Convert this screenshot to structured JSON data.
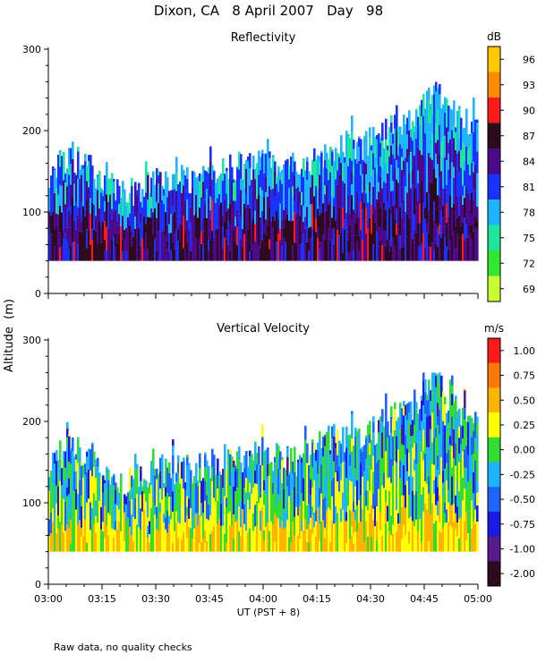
{
  "title": "Dixon, CA   8 April 2007   Day   98",
  "y_axis_label": "Altitude  (m)",
  "footnote": "Raw data, no quality checks",
  "chart_data": [
    {
      "type": "heatmap",
      "title": "Reflectivity",
      "xlabel": "UT   (PST + 8)",
      "x_tick_labels": [
        "03:00",
        "03:15",
        "03:30",
        "03:45",
        "04:00",
        "04:15",
        "04:30",
        "04:45",
        "05:00"
      ],
      "xlim": [
        "03:00",
        "05:00"
      ],
      "ylim": [
        0,
        300
      ],
      "y_ticks": [
        "0",
        "100",
        "200",
        "300"
      ],
      "colorbar": {
        "unit": "dB",
        "labels": [
          "96",
          "93",
          "90",
          "87",
          "84",
          "81",
          "78",
          "75",
          "72",
          "69"
        ],
        "colors": [
          "#ffc800",
          "#ff8c00",
          "#ff1a1a",
          "#2d0a1e",
          "#4b0a8c",
          "#1a32ff",
          "#1eb4ff",
          "#1ee6a0",
          "#32e632",
          "#c8ff32"
        ]
      },
      "echo_base_m": 40,
      "echo_top_m": [
        {
          "x": "03:00",
          "y": 140
        },
        {
          "x": "03:05",
          "y": 170
        },
        {
          "x": "03:10",
          "y": 160
        },
        {
          "x": "03:15",
          "y": 140
        },
        {
          "x": "03:20",
          "y": 120
        },
        {
          "x": "03:30",
          "y": 140
        },
        {
          "x": "03:40",
          "y": 140
        },
        {
          "x": "03:45",
          "y": 150
        },
        {
          "x": "04:00",
          "y": 160
        },
        {
          "x": "04:10",
          "y": 150
        },
        {
          "x": "04:15",
          "y": 170
        },
        {
          "x": "04:20",
          "y": 180
        },
        {
          "x": "04:28",
          "y": 180
        },
        {
          "x": "04:35",
          "y": 200
        },
        {
          "x": "04:40",
          "y": 210
        },
        {
          "x": "04:45",
          "y": 235
        },
        {
          "x": "04:48",
          "y": 260
        },
        {
          "x": "04:52",
          "y": 220
        },
        {
          "x": "05:00",
          "y": 200
        }
      ]
    },
    {
      "type": "heatmap",
      "title": "Vertical Velocity",
      "xlabel": "UT   (PST + 8)",
      "x_tick_labels": [
        "03:00",
        "03:15",
        "03:30",
        "03:45",
        "04:00",
        "04:15",
        "04:30",
        "04:45",
        "05:00"
      ],
      "xlim": [
        "03:00",
        "05:00"
      ],
      "ylim": [
        0,
        300
      ],
      "y_ticks": [
        "0",
        "100",
        "200",
        "300"
      ],
      "colorbar": {
        "unit": "m/s",
        "labels": [
          "1.00",
          "0.75",
          "0.50",
          "0.25",
          "0.00",
          "-0.25",
          "-0.50",
          "-0.75",
          "-1.00",
          "-2.00"
        ],
        "colors": [
          "#ff1a1a",
          "#ff7800",
          "#ffb400",
          "#ffff00",
          "#32dc32",
          "#1eb4ff",
          "#1e64ff",
          "#1a1ae6",
          "#5a1a8c",
          "#2d0a1e"
        ]
      },
      "echo_base_m": 40,
      "echo_top_m": [
        {
          "x": "03:00",
          "y": 140
        },
        {
          "x": "03:05",
          "y": 170
        },
        {
          "x": "03:10",
          "y": 160
        },
        {
          "x": "03:15",
          "y": 140
        },
        {
          "x": "03:20",
          "y": 120
        },
        {
          "x": "03:30",
          "y": 140
        },
        {
          "x": "03:40",
          "y": 140
        },
        {
          "x": "03:45",
          "y": 150
        },
        {
          "x": "04:00",
          "y": 160
        },
        {
          "x": "04:10",
          "y": 150
        },
        {
          "x": "04:15",
          "y": 170
        },
        {
          "x": "04:20",
          "y": 180
        },
        {
          "x": "04:28",
          "y": 180
        },
        {
          "x": "04:35",
          "y": 200
        },
        {
          "x": "04:40",
          "y": 210
        },
        {
          "x": "04:45",
          "y": 235
        },
        {
          "x": "04:48",
          "y": 260
        },
        {
          "x": "04:52",
          "y": 220
        },
        {
          "x": "05:00",
          "y": 200
        }
      ]
    }
  ]
}
